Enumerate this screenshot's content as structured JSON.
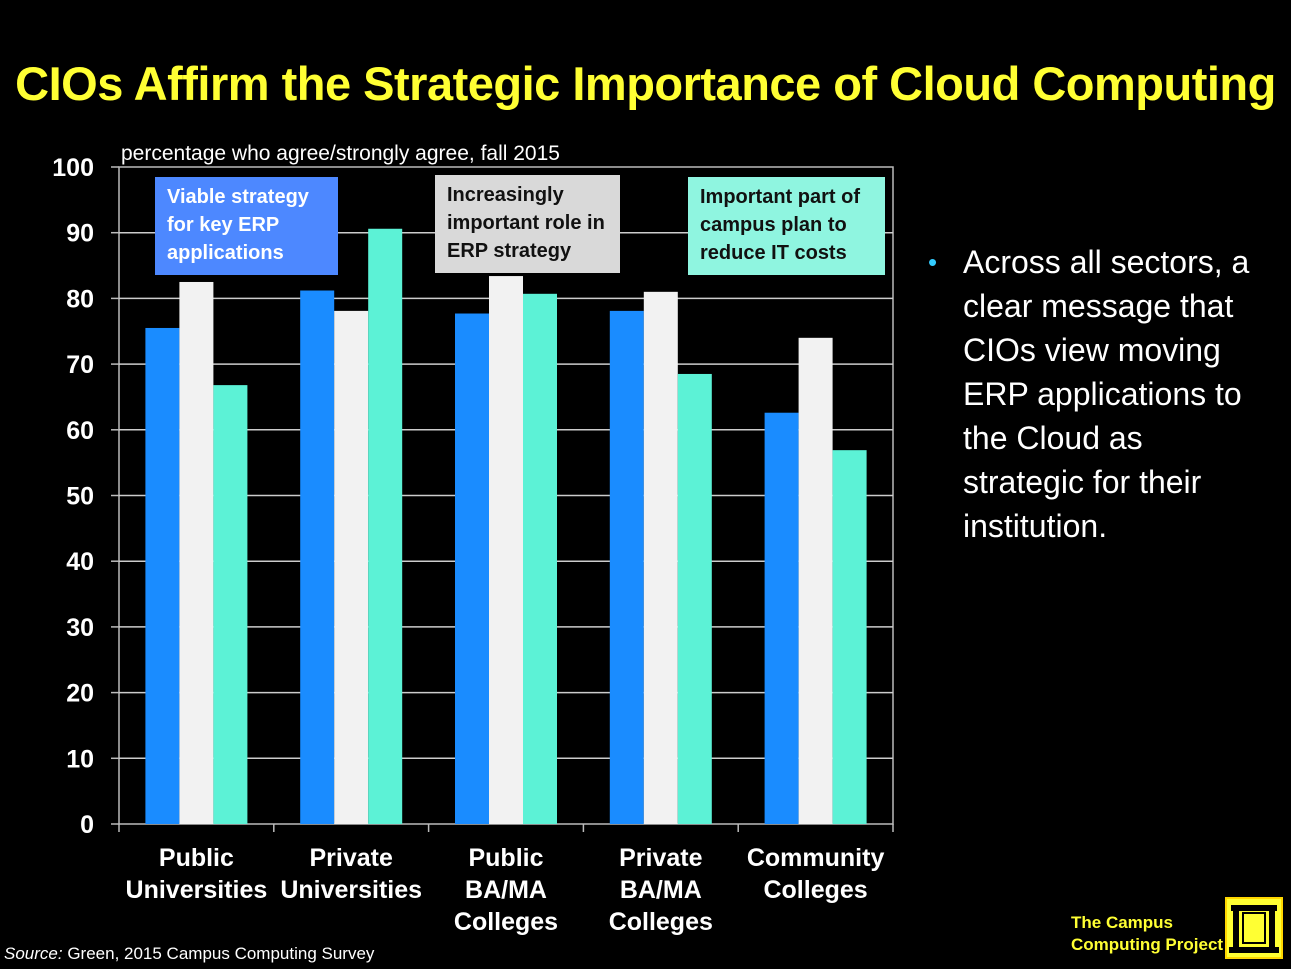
{
  "slide": {
    "title": "CIOs Affirm the Strategic Importance of Cloud Computing",
    "bullet": "Across all sectors, a clear message that CIOs view moving ERP applications to the Cloud as strategic for their institution.",
    "source_label": "Source:",
    "source_text": " Green, 2015  Campus Computing Survey",
    "brand_line1": "The Campus",
    "brand_line2": "Computing Project"
  },
  "colors": {
    "title": "#ffff33",
    "series1": "#1a8cff",
    "series2": "#f2f2f2",
    "series3": "#5cf2d6",
    "legend1_bg": "#4d88ff",
    "legend2_bg": "#d9d9d9",
    "legend3_bg": "#8ff5e0",
    "bullet": "#33ccff"
  },
  "chart_data": {
    "type": "bar",
    "subtitle": "percentage who agree/strongly agree, fall 2015",
    "categories": [
      [
        "Public",
        "Universities"
      ],
      [
        "Private",
        "Universities"
      ],
      [
        "Public",
        "BA/MA",
        "Colleges"
      ],
      [
        "Private",
        "BA/MA",
        "Colleges"
      ],
      [
        "Community",
        "Colleges"
      ]
    ],
    "series": [
      {
        "name": [
          "Viable strategy",
          "for  key ERP",
          "applications"
        ],
        "values": [
          75.5,
          81.2,
          77.7,
          78.1,
          62.6
        ]
      },
      {
        "name": [
          "Increasingly",
          "important role in",
          "ERP strategy"
        ],
        "values": [
          82.5,
          78.1,
          83.4,
          81.0,
          74.0
        ]
      },
      {
        "name": [
          "Important part of",
          "campus plan to",
          "reduce IT costs"
        ],
        "values": [
          66.8,
          90.6,
          80.7,
          68.5,
          56.9
        ]
      }
    ],
    "ylim": [
      0,
      100
    ],
    "yticks": [
      0,
      10,
      20,
      30,
      40,
      50,
      60,
      70,
      80,
      90,
      100
    ],
    "grid": true,
    "legend_placement": "top, inside plot"
  }
}
